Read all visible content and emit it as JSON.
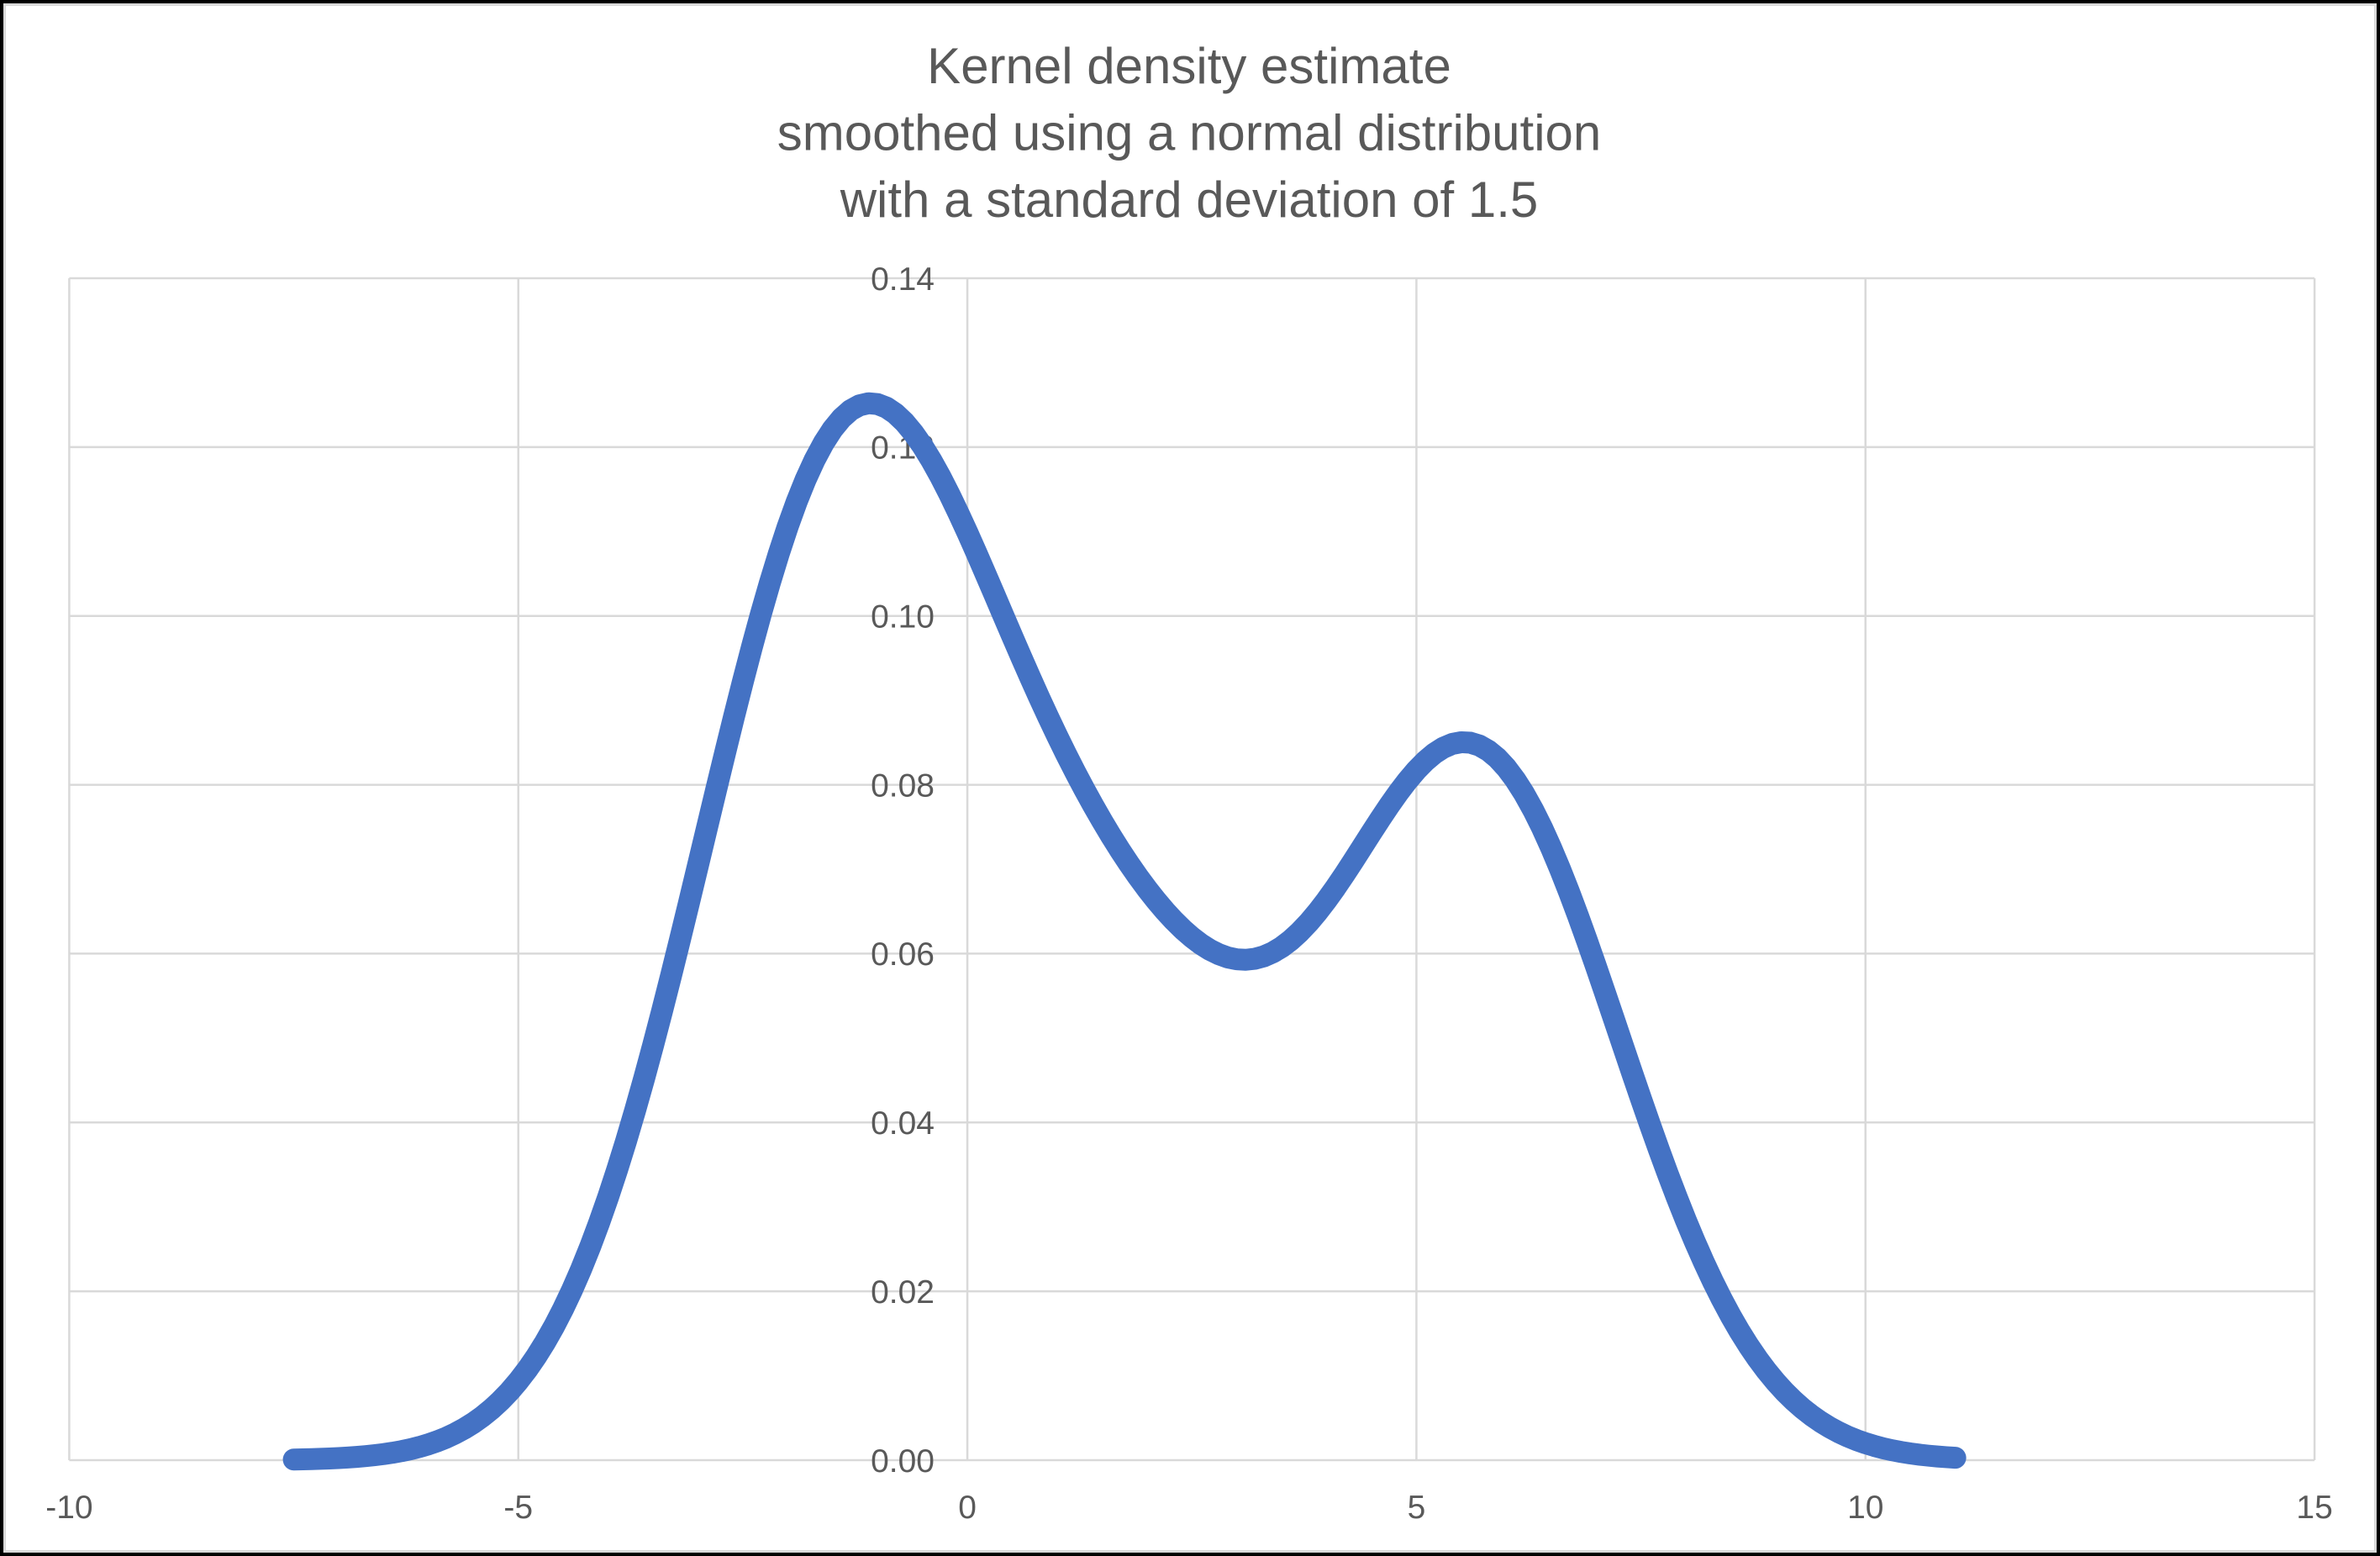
{
  "chart_data": {
    "type": "line",
    "title": "Kernel density estimate smoothed using a normal distribution with a standard deviation of 1.5",
    "title_lines": [
      "Kernel density estimate",
      "smoothed using a normal distribution",
      "with a standard deviation of 1.5"
    ],
    "xlabel": "",
    "ylabel": "",
    "xlim": [
      -10,
      15
    ],
    "ylim": [
      0,
      0.14
    ],
    "x_ticks": [
      -10,
      -5,
      0,
      5,
      10,
      15
    ],
    "x_tick_labels": [
      "-10",
      "-5",
      "0",
      "5",
      "10",
      "15"
    ],
    "y_ticks": [
      0,
      0.02,
      0.04,
      0.06,
      0.08,
      0.1,
      0.12,
      0.14
    ],
    "y_tick_labels": [
      "0.00",
      "0.02",
      "0.04",
      "0.06",
      "0.08",
      "0.10",
      "0.12",
      "0.14"
    ],
    "grid": true,
    "legend": false,
    "series": [
      {
        "name": "Kernel density estimate",
        "color": "#4472C4",
        "x": [
          -7.5,
          -7.4,
          -7.3,
          -7.2,
          -7.1,
          -7.0,
          -6.9,
          -6.8,
          -6.7,
          -6.6,
          -6.5,
          -6.4,
          -6.3,
          -6.2,
          -6.1,
          -6.0,
          -5.9,
          -5.8,
          -5.7,
          -5.6,
          -5.5,
          -5.4,
          -5.3,
          -5.2,
          -5.1,
          -5.0,
          -4.9,
          -4.8,
          -4.7,
          -4.6,
          -4.5,
          -4.4,
          -4.3,
          -4.2,
          -4.1,
          -4.0,
          -3.9,
          -3.8,
          -3.7,
          -3.6,
          -3.5,
          -3.4,
          -3.3,
          -3.2,
          -3.1,
          -3.0,
          -2.9,
          -2.8,
          -2.7,
          -2.6,
          -2.5,
          -2.4,
          -2.3,
          -2.2,
          -2.1,
          -2.0,
          -1.9,
          -1.8,
          -1.7,
          -1.6,
          -1.5,
          -1.4,
          -1.3,
          -1.2,
          -1.1,
          -1.0,
          -0.9,
          -0.8,
          -0.7,
          -0.6,
          -0.5,
          -0.4,
          -0.3,
          -0.2,
          -0.1,
          0.0,
          0.1,
          0.2,
          0.3,
          0.4,
          0.5,
          0.6,
          0.7,
          0.8,
          0.9,
          1.0,
          1.1,
          1.2,
          1.3,
          1.4,
          1.5,
          1.6,
          1.7,
          1.8,
          1.9,
          2.0,
          2.1,
          2.2,
          2.3,
          2.4,
          2.5,
          2.6,
          2.7,
          2.8,
          2.9,
          3.0,
          3.1,
          3.2,
          3.3,
          3.4,
          3.5,
          3.6,
          3.7,
          3.8,
          3.9,
          4.0,
          4.1,
          4.2,
          4.3,
          4.4,
          4.5,
          4.6,
          4.7,
          4.8,
          4.9,
          5.0,
          5.1,
          5.2,
          5.3,
          5.4,
          5.5,
          5.6,
          5.7,
          5.8,
          5.9,
          6.0,
          6.1,
          6.2,
          6.3,
          6.4,
          6.5,
          6.6,
          6.7,
          6.8,
          6.9,
          7.0,
          7.1,
          7.2,
          7.3,
          7.4,
          7.5,
          7.6,
          7.7,
          7.8,
          7.9,
          8.0,
          8.1,
          8.2,
          8.3,
          8.4,
          8.5,
          8.6,
          8.7,
          8.8,
          8.9,
          9.0,
          9.1,
          9.2,
          9.3,
          9.4,
          9.5,
          9.6,
          9.7,
          9.8,
          9.9,
          10.0,
          10.1,
          10.2,
          10.3,
          10.4,
          10.5,
          10.6,
          10.7,
          10.8,
          10.9,
          11.0
        ],
        "y": [
          7.7e-05,
          9.8e-05,
          0.000125,
          0.000158,
          0.000199,
          0.000249,
          0.00031,
          0.000385,
          0.000477,
          0.000587,
          0.00072,
          0.00088,
          0.00107,
          0.001296,
          0.001564,
          0.001878,
          0.002247,
          0.002676,
          0.003175,
          0.003751,
          0.004413,
          0.005171,
          0.006034,
          0.007013,
          0.008118,
          0.009358,
          0.010745,
          0.012288,
          0.013996,
          0.015878,
          0.017941,
          0.020193,
          0.022637,
          0.025278,
          0.028117,
          0.031153,
          0.034384,
          0.037803,
          0.041404,
          0.045175,
          0.049102,
          0.05317,
          0.05736,
          0.061649,
          0.066014,
          0.070429,
          0.074864,
          0.079291,
          0.083678,
          0.087993,
          0.092203,
          0.096277,
          0.100182,
          0.103888,
          0.107365,
          0.110588,
          0.113531,
          0.116173,
          0.118495,
          0.120484,
          0.122129,
          0.123422,
          0.124362,
          0.124949,
          0.125191,
          0.125095,
          0.124676,
          0.123951,
          0.122938,
          0.121661,
          0.120143,
          0.118411,
          0.116491,
          0.114411,
          0.112199,
          0.109882,
          0.107486,
          0.105036,
          0.102554,
          0.100063,
          0.09758,
          0.095122,
          0.092704,
          0.090336,
          0.088028,
          0.085787,
          0.083618,
          0.081525,
          0.07951,
          0.077574,
          0.075718,
          0.073943,
          0.07225,
          0.070638,
          0.069111,
          0.06767,
          0.06632,
          0.065065,
          0.063911,
          0.062866,
          0.061936,
          0.06113,
          0.060458,
          0.059928,
          0.059549,
          0.059328,
          0.059272,
          0.059388,
          0.059677,
          0.060141,
          0.06078,
          0.061588,
          0.062559,
          0.063682,
          0.064945,
          0.06633,
          0.06782,
          0.069392,
          0.071022,
          0.072684,
          0.07435,
          0.075992,
          0.07758,
          0.079085,
          0.080478,
          0.08173,
          0.082816,
          0.08371,
          0.084391,
          0.084841,
          0.085042,
          0.084982,
          0.084653,
          0.084051,
          0.083173,
          0.082023,
          0.080606,
          0.078934,
          0.077019,
          0.074877,
          0.072528,
          0.069992,
          0.067293,
          0.064454,
          0.061502,
          0.058461,
          0.055357,
          0.052217,
          0.049064,
          0.045923,
          0.042815,
          0.039761,
          0.036779,
          0.033887,
          0.031099,
          0.028427,
          0.025881,
          0.023468,
          0.021195,
          0.019066,
          0.017081,
          0.01524,
          0.013543,
          0.011986,
          0.010564,
          0.009273,
          0.008106,
          0.007057,
          0.006118,
          0.005282,
          0.004542,
          0.003889,
          0.003316,
          0.002815,
          0.002381,
          0.002004,
          0.001681,
          0.001403,
          0.001167,
          0.000966,
          0.000796,
          0.000653,
          0.000534,
          0.000435,
          0.000352,
          0.000284
        ]
      }
    ],
    "colors": {
      "curve": "#4472C4",
      "gridline": "#D9D9D9",
      "text": "#595959",
      "plot_background": "#FFFFFF",
      "frame": "#000000",
      "chart_border": "#D9D9D9"
    }
  }
}
